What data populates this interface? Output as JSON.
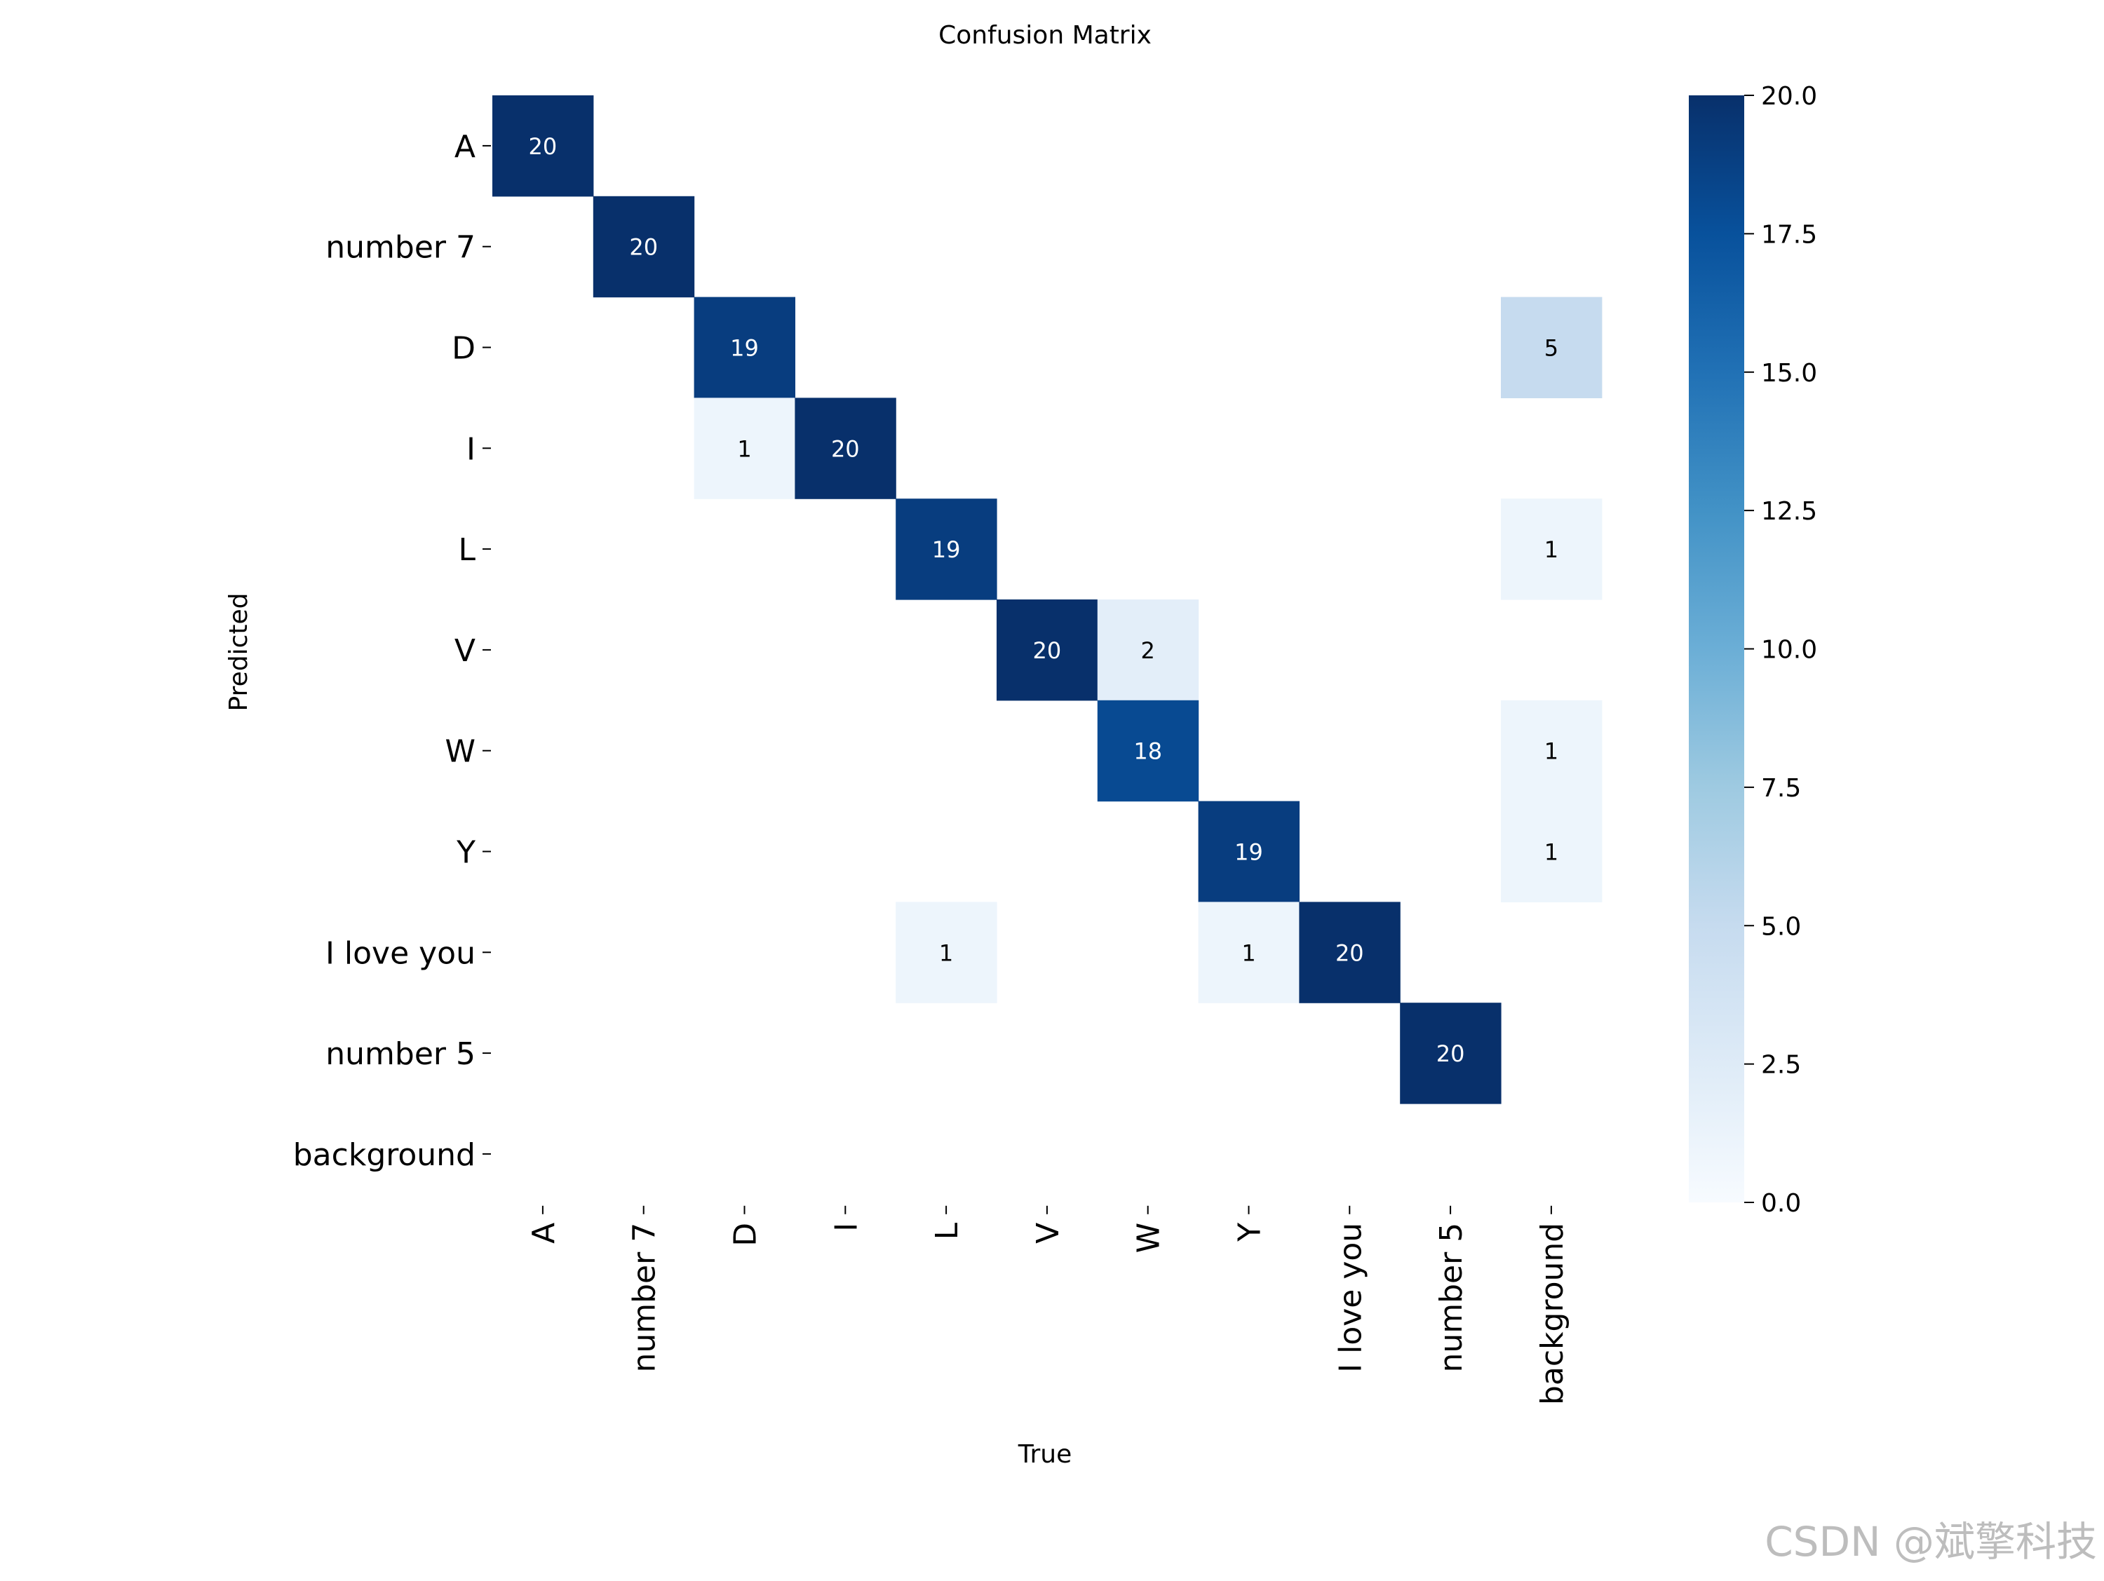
{
  "chart_data": {
    "type": "heatmap",
    "title": "Confusion Matrix",
    "xlabel": "True",
    "ylabel": "Predicted",
    "x_categories": [
      "A",
      "number 7",
      "D",
      "I",
      "L",
      "V",
      "W",
      "Y",
      "I love you",
      "number 5",
      "background"
    ],
    "y_categories": [
      "A",
      "number 7",
      "D",
      "I",
      "L",
      "V",
      "W",
      "Y",
      "I love you",
      "number 5",
      "background"
    ],
    "values": [
      [
        20,
        0,
        0,
        0,
        0,
        0,
        0,
        0,
        0,
        0,
        0
      ],
      [
        0,
        20,
        0,
        0,
        0,
        0,
        0,
        0,
        0,
        0,
        0
      ],
      [
        0,
        0,
        19,
        0,
        0,
        0,
        0,
        0,
        0,
        0,
        5
      ],
      [
        0,
        0,
        1,
        20,
        0,
        0,
        0,
        0,
        0,
        0,
        0
      ],
      [
        0,
        0,
        0,
        0,
        19,
        0,
        0,
        0,
        0,
        0,
        1
      ],
      [
        0,
        0,
        0,
        0,
        0,
        20,
        2,
        0,
        0,
        0,
        0
      ],
      [
        0,
        0,
        0,
        0,
        0,
        0,
        18,
        0,
        0,
        0,
        1
      ],
      [
        0,
        0,
        0,
        0,
        0,
        0,
        0,
        19,
        0,
        0,
        1
      ],
      [
        0,
        0,
        0,
        0,
        1,
        0,
        0,
        1,
        20,
        0,
        0
      ],
      [
        0,
        0,
        0,
        0,
        0,
        0,
        0,
        0,
        0,
        20,
        0
      ],
      [
        0,
        0,
        0,
        0,
        0,
        0,
        0,
        0,
        0,
        0,
        0
      ]
    ],
    "zero_cells_hidden": true,
    "colormap": "Blues",
    "vmin": 0,
    "vmax": 20,
    "colorbar_ticks": [
      "0.0",
      "2.5",
      "5.0",
      "7.5",
      "10.0",
      "12.5",
      "15.0",
      "17.5",
      "20.0"
    ]
  },
  "watermark": "CSDN @斌擎科技"
}
